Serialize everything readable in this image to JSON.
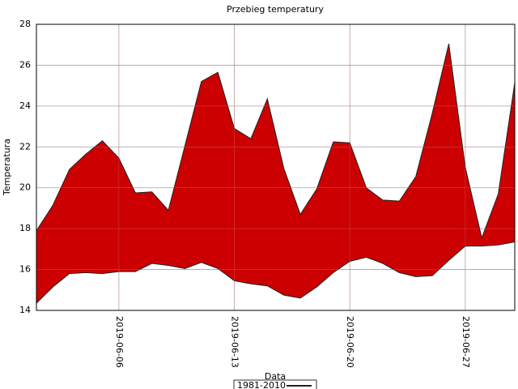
{
  "chart_data": {
    "type": "band",
    "title": "Przebieg temperatury",
    "xlabel": "Data",
    "ylabel": "Temperatura",
    "x": [
      "2019-06-01",
      "2019-06-02",
      "2019-06-03",
      "2019-06-04",
      "2019-06-05",
      "2019-06-06",
      "2019-06-07",
      "2019-06-08",
      "2019-06-09",
      "2019-06-10",
      "2019-06-11",
      "2019-06-12",
      "2019-06-13",
      "2019-06-14",
      "2019-06-15",
      "2019-06-16",
      "2019-06-17",
      "2019-06-18",
      "2019-06-19",
      "2019-06-20",
      "2019-06-21",
      "2019-06-22",
      "2019-06-23",
      "2019-06-24",
      "2019-06-25",
      "2019-06-26",
      "2019-06-27",
      "2019-06-28",
      "2019-06-29",
      "2019-06-30"
    ],
    "series": [
      {
        "name": "1981-2010",
        "color": "#cc0000",
        "edge_color": "#222222",
        "upper": [
          17.9,
          19.15,
          20.9,
          21.65,
          22.3,
          21.45,
          19.75,
          19.8,
          18.9,
          22.05,
          25.2,
          25.65,
          22.9,
          22.4,
          24.35,
          20.95,
          18.7,
          19.95,
          22.25,
          22.2,
          20.0,
          19.4,
          19.35,
          20.55,
          23.65,
          27.05,
          21.0,
          17.55,
          19.7,
          25.15
        ],
        "lower": [
          14.35,
          15.15,
          15.8,
          15.85,
          15.8,
          15.9,
          15.9,
          16.3,
          16.2,
          16.05,
          16.35,
          16.05,
          15.45,
          15.3,
          15.2,
          14.75,
          14.6,
          15.15,
          15.85,
          16.4,
          16.6,
          16.3,
          15.85,
          15.65,
          15.7,
          16.45,
          17.15,
          17.15,
          17.2,
          17.35
        ]
      }
    ],
    "xlim": [
      "2019-06-01",
      "2019-06-30"
    ],
    "xticks": [
      "2019-06-06",
      "2019-06-13",
      "2019-06-20",
      "2019-06-27"
    ],
    "ylim": [
      14,
      28
    ],
    "yticks": [
      14,
      16,
      18,
      20,
      22,
      24,
      26,
      28
    ],
    "grid": true,
    "legend": "bottom"
  }
}
